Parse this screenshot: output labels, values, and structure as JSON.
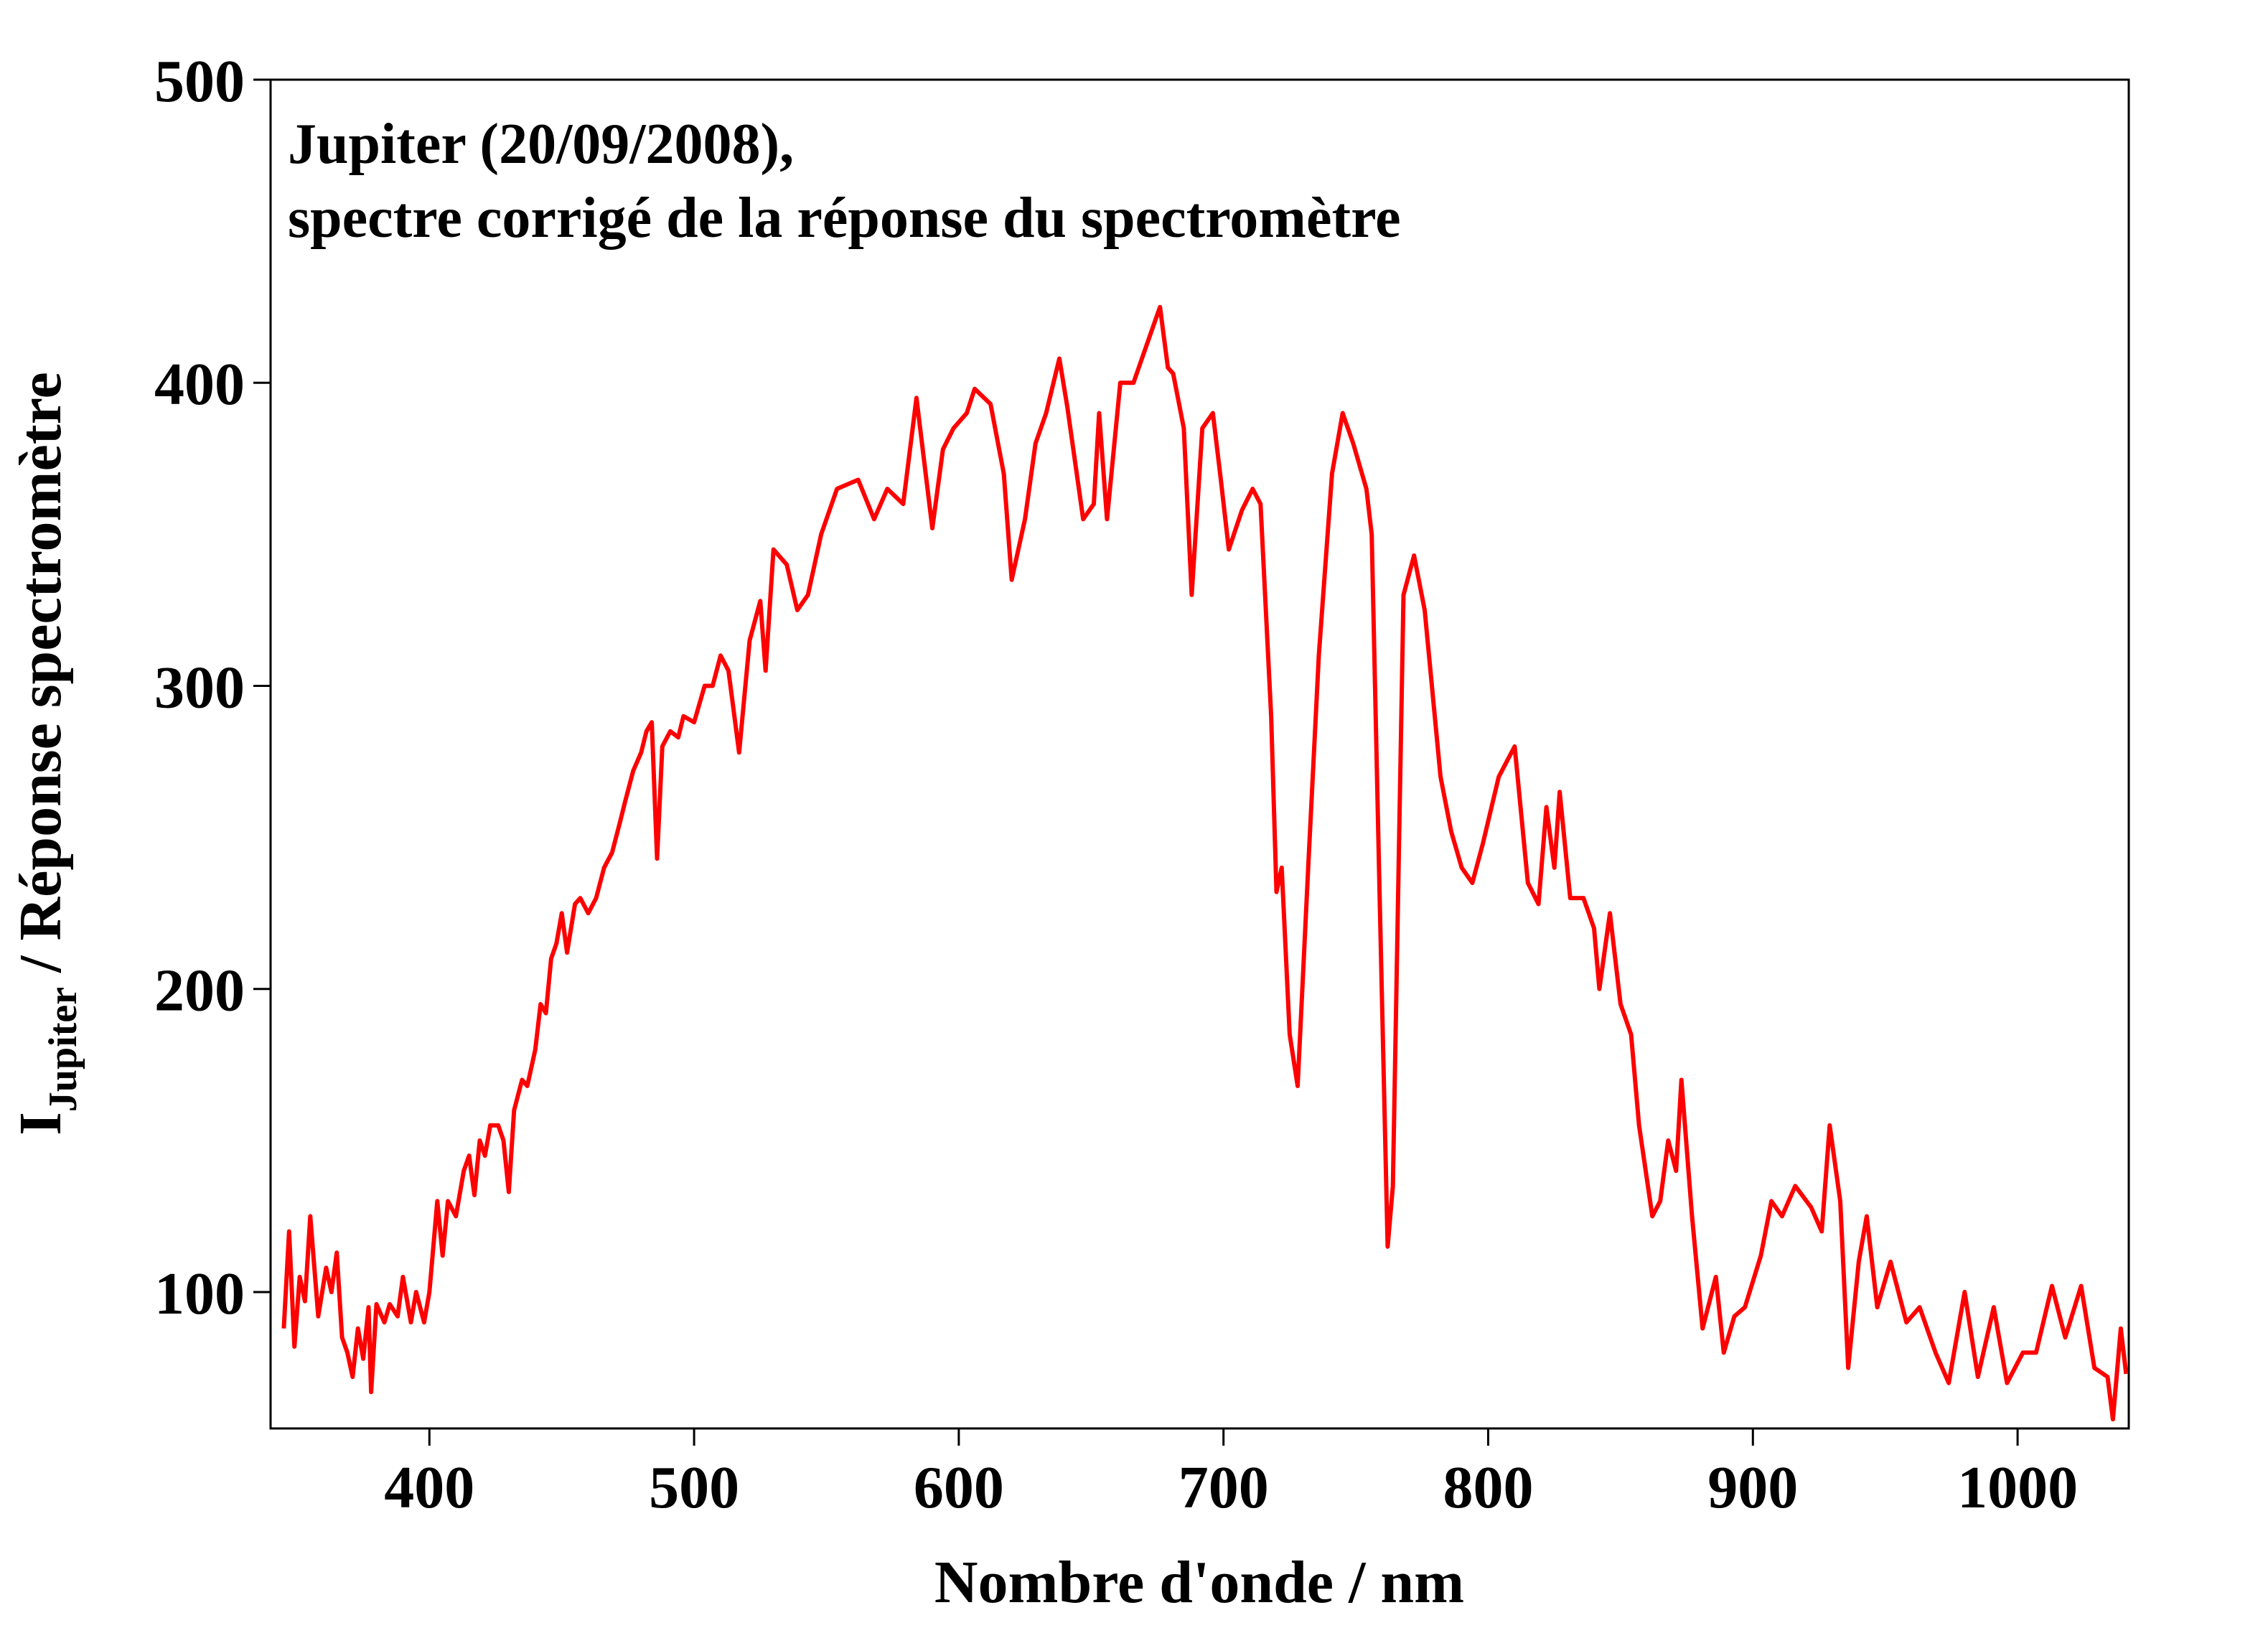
{
  "chart_data": {
    "type": "line",
    "title": [
      "Jupiter (20/09/2008),",
      "spectre corrigé de la réponse du spectromètre"
    ],
    "xlabel": "Nombre d'onde / nm",
    "ylabel": [
      "I",
      "Jupiter",
      "/ Réponse spectromètre"
    ],
    "xlim": [
      340,
      1042
    ],
    "ylim": [
      55,
      500
    ],
    "xticks": [
      400,
      500,
      600,
      700,
      800,
      900,
      1000
    ],
    "yticks": [
      100,
      200,
      300,
      400,
      500
    ],
    "grid": false,
    "series": [
      {
        "color": "#ff0000",
        "x": [
          345,
          347,
          349,
          351,
          353,
          355,
          358,
          361,
          363,
          365,
          367,
          369,
          371,
          373,
          375,
          377,
          378,
          380,
          383,
          385,
          388,
          390,
          393,
          395,
          398,
          400,
          403,
          405,
          407,
          410,
          413,
          415,
          417,
          419,
          421,
          423,
          426,
          428,
          430,
          432,
          435,
          437,
          440,
          442,
          444,
          446,
          448,
          450,
          452,
          455,
          457,
          460,
          463,
          466,
          469,
          472,
          474,
          477,
          480,
          482,
          484,
          486,
          488,
          491,
          494,
          496,
          500,
          504,
          507,
          510,
          513,
          517,
          521,
          525,
          527,
          530,
          535,
          539,
          543,
          548,
          554,
          562,
          568,
          573,
          579,
          584,
          590,
          594,
          598,
          603,
          606,
          612,
          617,
          620,
          625,
          629,
          633,
          638,
          641,
          647,
          651,
          653,
          656,
          661,
          666,
          672,
          676,
          679,
          681,
          685,
          688,
          692,
          696,
          699,
          702,
          707,
          711,
          714,
          718,
          720,
          722,
          725,
          728,
          732,
          736,
          741,
          745,
          749,
          754,
          756,
          759,
          762,
          764,
          768,
          772,
          776,
          782,
          786,
          790,
          794,
          798,
          804,
          810,
          815,
          819,
          822,
          825,
          827,
          831,
          836,
          840,
          842,
          846,
          850,
          854,
          857,
          862,
          865,
          868,
          871,
          873,
          877,
          881,
          886,
          889,
          893,
          897,
          903,
          907,
          911,
          916,
          922,
          926,
          929,
          933,
          936,
          940,
          943,
          947,
          952,
          958,
          963,
          969,
          974,
          980,
          985,
          991,
          996,
          1002,
          1007,
          1013,
          1018,
          1024,
          1029,
          1034,
          1036,
          1039,
          1041
        ],
        "values": [
          88,
          120,
          82,
          105,
          97,
          125,
          92,
          108,
          100,
          113,
          85,
          80,
          72,
          88,
          78,
          95,
          67,
          96,
          90,
          96,
          92,
          105,
          90,
          100,
          90,
          100,
          130,
          112,
          130,
          125,
          140,
          145,
          132,
          150,
          145,
          155,
          155,
          150,
          133,
          160,
          170,
          168,
          180,
          195,
          192,
          210,
          215,
          225,
          212,
          228,
          230,
          225,
          230,
          240,
          245,
          255,
          262,
          272,
          278,
          285,
          288,
          243,
          280,
          285,
          283,
          290,
          288,
          300,
          300,
          310,
          305,
          278,
          315,
          328,
          305,
          345,
          340,
          325,
          330,
          350,
          365,
          368,
          355,
          365,
          360,
          395,
          352,
          378,
          385,
          390,
          398,
          393,
          370,
          335,
          355,
          380,
          390,
          408,
          392,
          355,
          360,
          390,
          355,
          400,
          400,
          415,
          425,
          405,
          403,
          385,
          330,
          385,
          390,
          368,
          345,
          358,
          365,
          360,
          290,
          232,
          240,
          185,
          168,
          240,
          310,
          370,
          390,
          380,
          365,
          350,
          230,
          115,
          135,
          330,
          343,
          325,
          270,
          252,
          240,
          235,
          248,
          270,
          280,
          235,
          228,
          260,
          240,
          265,
          230,
          230,
          220,
          200,
          225,
          195,
          185,
          155,
          125,
          130,
          150,
          140,
          170,
          125,
          88,
          105,
          80,
          92,
          95,
          112,
          130,
          125,
          135,
          128,
          120,
          155,
          130,
          75,
          110,
          125,
          95,
          110,
          90,
          95,
          80,
          70,
          100,
          72,
          95,
          70,
          80,
          80,
          102,
          85,
          102,
          75,
          72,
          58,
          88,
          73
        ]
      }
    ]
  }
}
